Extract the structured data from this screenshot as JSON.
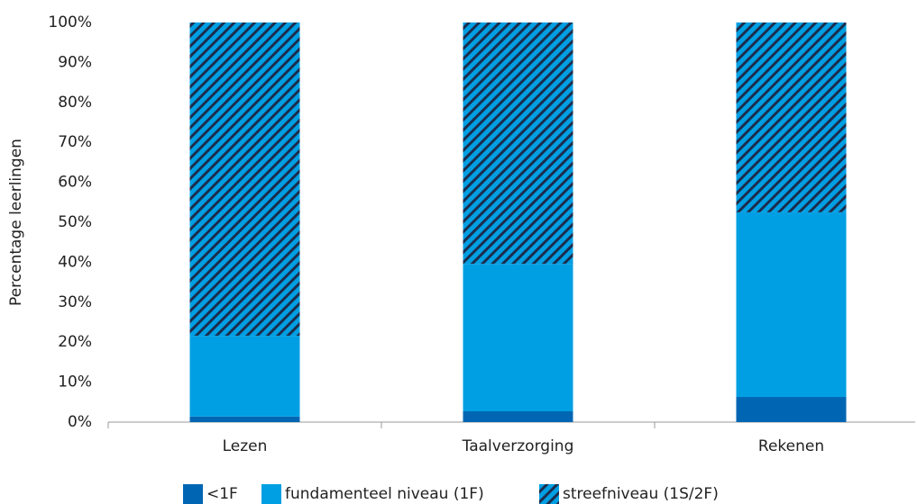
{
  "chart_data": {
    "type": "stacked_bar",
    "y_label": "Percentage leerlingen",
    "categories": [
      "Lezen",
      "Taalverzorging",
      "Rekenen"
    ],
    "series": [
      {
        "name": "<1F",
        "color": "#0066b3",
        "values": [
          1.4,
          2.7,
          6.3
        ]
      },
      {
        "name": "fundamenteel niveau (1F)",
        "color": "#009fe3",
        "values": [
          20.2,
          36.9,
          46.2
        ]
      },
      {
        "name": "streefniveau (1S/2F)",
        "color": "#009fe3",
        "hatch": "#1c2d4d",
        "values": [
          78.4,
          60.4,
          47.5
        ]
      }
    ],
    "ylim": [
      0,
      100
    ],
    "yticks": [
      {
        "value": 0,
        "label": "0%"
      },
      {
        "value": 10,
        "label": "10%"
      },
      {
        "value": 20,
        "label": "20%"
      },
      {
        "value": 30,
        "label": "30%"
      },
      {
        "value": 40,
        "label": "40%"
      },
      {
        "value": 50,
        "label": "50%"
      },
      {
        "value": 60,
        "label": "60%"
      },
      {
        "value": 70,
        "label": "70%"
      },
      {
        "value": 80,
        "label": "80%"
      },
      {
        "value": 90,
        "label": "90%"
      },
      {
        "value": 100,
        "label": "100%"
      }
    ],
    "legend": "bottom"
  }
}
